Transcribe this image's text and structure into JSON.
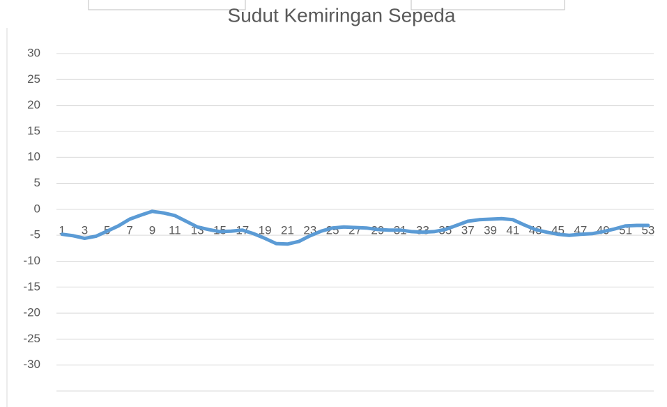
{
  "chart_data": {
    "type": "line",
    "title": "Sudut Kemiringan Sepeda",
    "categories": [
      "1",
      null,
      "3",
      null,
      "5",
      null,
      "7",
      null,
      "9",
      null,
      "11",
      null,
      "13",
      null,
      "15",
      null,
      "17",
      null,
      "19",
      null,
      "21",
      null,
      "23",
      null,
      "25",
      null,
      "27",
      null,
      "29",
      null,
      "31",
      null,
      "33",
      null,
      "35",
      null,
      "37",
      null,
      "39",
      null,
      "41",
      null,
      "43",
      null,
      "45",
      null,
      "47",
      null,
      "49",
      null,
      "51",
      null,
      "53"
    ],
    "series": [
      {
        "color": "#5b9bd5",
        "values": [
          -4.8,
          -5.1,
          -5.6,
          -5.2,
          -4.2,
          -3.2,
          -1.9,
          -1.1,
          -0.4,
          -0.7,
          -1.2,
          -2.3,
          -3.4,
          -3.9,
          -4.3,
          -4.2,
          -4.0,
          -4.7,
          -5.6,
          -6.6,
          -6.7,
          -6.2,
          -5.1,
          -4.2,
          -3.6,
          -3.4,
          -3.5,
          -3.6,
          -3.9,
          -4.0,
          -4.0,
          -4.3,
          -4.4,
          -4.3,
          -3.9,
          -3.1,
          -2.3,
          -2.0,
          -1.9,
          -1.8,
          -2.0,
          -3.0,
          -3.9,
          -4.4,
          -4.8,
          -5.0,
          -4.8,
          -4.7,
          -4.3,
          -3.8,
          -3.2,
          -3.1,
          -3.1
        ]
      }
    ],
    "ylim": [
      -35,
      30
    ],
    "yticks": [
      30,
      25,
      20,
      15,
      10,
      5,
      0,
      -5,
      -10,
      -15,
      -20,
      -25,
      -30
    ],
    "grid": true
  }
}
